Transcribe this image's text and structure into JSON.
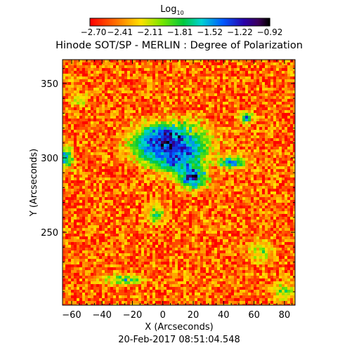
{
  "chart_data": {
    "type": "heatmap",
    "title": "Hinode SOT/SP - MERLIN : Degree of Polarization",
    "colorbar": {
      "label": "Log",
      "label_subscript": "10",
      "ticks": [
        "-2.70",
        "-2.41",
        "-2.11",
        "-1.81",
        "-1.52",
        "-1.22",
        "-0.92"
      ],
      "range": [
        -2.7,
        -0.92
      ],
      "colormap": "rainbow (red → yellow → green → cyan → blue → purple → black)"
    },
    "xlabel": "X (Arcseconds)",
    "ylabel": "Y (Arcseconds)",
    "xlim": [
      -66,
      87
    ],
    "ylim": [
      201,
      366
    ],
    "xticks": [
      "-60",
      "-40",
      "-20",
      "0",
      "20",
      "40",
      "60",
      "80"
    ],
    "xtick_values": [
      -60,
      -40,
      -20,
      0,
      20,
      40,
      60,
      80
    ],
    "yticks": [
      "250",
      "300",
      "350"
    ],
    "ytick_values": [
      250,
      300,
      350
    ],
    "footer": "20-Feb-2017 08:51:04.548",
    "background_level": -2.7,
    "regions": [
      {
        "x": 5,
        "y": 310,
        "rx": 24,
        "ry": 14,
        "peak": -1.0
      },
      {
        "x": 20,
        "y": 287,
        "rx": 9,
        "ry": 8,
        "peak": -0.92
      },
      {
        "x": 10,
        "y": 300,
        "rx": 16,
        "ry": 12,
        "peak": -1.3
      },
      {
        "x": -8,
        "y": 308,
        "rx": 10,
        "ry": 10,
        "peak": -1.4
      },
      {
        "x": 45,
        "y": 297,
        "rx": 10,
        "ry": 5,
        "peak": -1.5
      },
      {
        "x": -64,
        "y": 300,
        "rx": 5,
        "ry": 8,
        "peak": -1.5
      },
      {
        "x": 55,
        "y": 327,
        "rx": 5,
        "ry": 4,
        "peak": -1.5
      },
      {
        "x": -5,
        "y": 262,
        "rx": 6,
        "ry": 6,
        "peak": -1.7
      },
      {
        "x": -25,
        "y": 218,
        "rx": 14,
        "ry": 4,
        "peak": -1.8
      },
      {
        "x": 65,
        "y": 237,
        "rx": 8,
        "ry": 8,
        "peak": -2.0
      },
      {
        "x": 80,
        "y": 210,
        "rx": 8,
        "ry": 6,
        "peak": -1.9
      },
      {
        "x": -55,
        "y": 339,
        "rx": 6,
        "ry": 4,
        "peak": -2.0
      },
      {
        "x": 0,
        "y": 318,
        "rx": 8,
        "ry": 4,
        "peak": -1.3
      }
    ]
  },
  "colors": {
    "background": "#ffffff",
    "axis": "#000000"
  }
}
